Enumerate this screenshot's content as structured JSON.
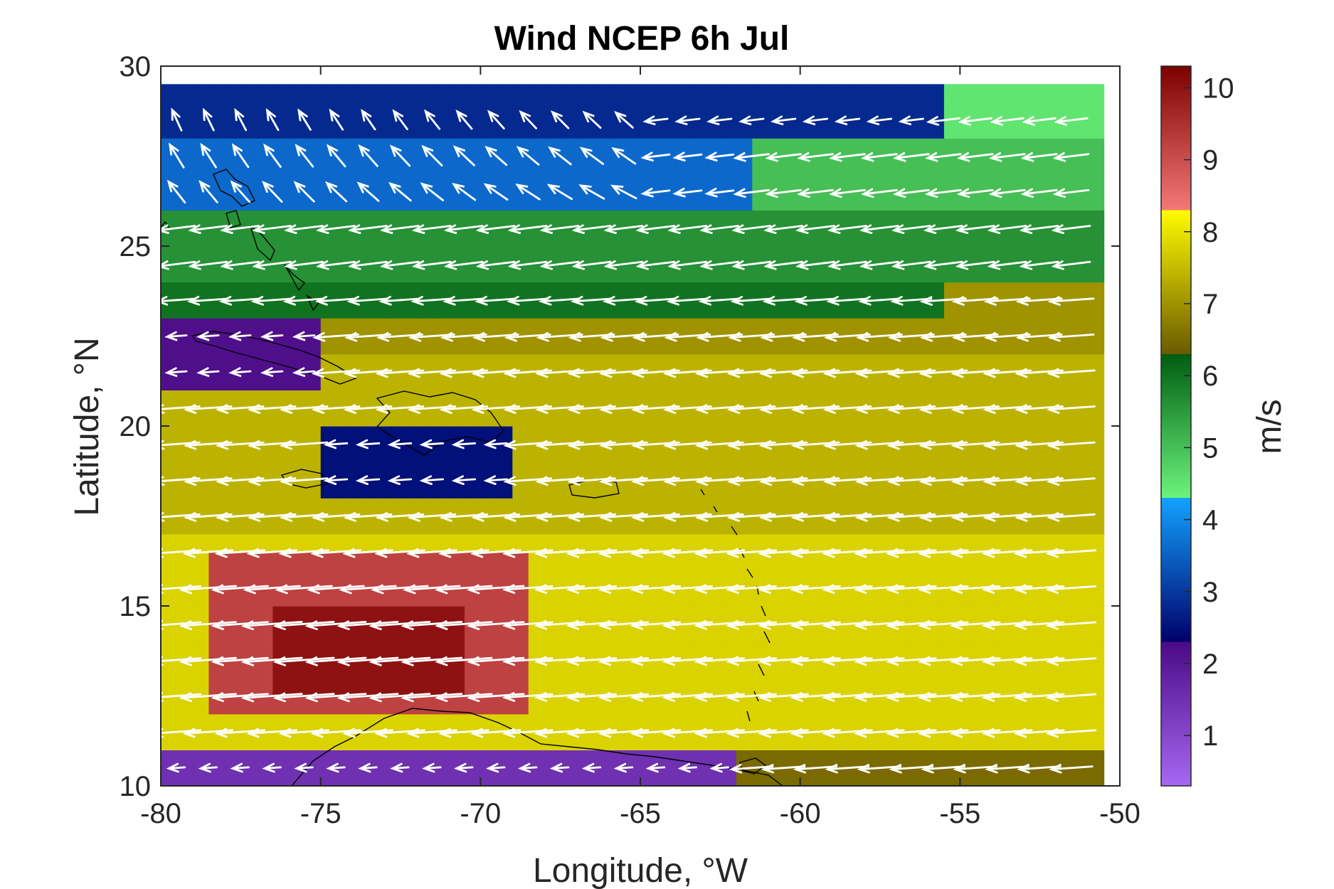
{
  "chart_data": {
    "type": "heatmap",
    "subtype": "vector-field-over-colored-grid",
    "title": "Wind NCEP 6h Jul",
    "xlabel": "Longitude, °W",
    "ylabel": "Latitude, °N",
    "xlim": [
      -80,
      -50
    ],
    "ylim": [
      10,
      30
    ],
    "xticks": [
      -80,
      -75,
      -70,
      -65,
      -60,
      -55,
      -50
    ],
    "yticks": [
      10,
      15,
      20,
      25,
      30
    ],
    "grid": false,
    "colorbar": {
      "label": "m/s",
      "range": [
        0.3,
        10.3
      ],
      "ticks": [
        1,
        2,
        3,
        4,
        5,
        6,
        7,
        8,
        9,
        10
      ],
      "position": "right",
      "segments": [
        {
          "from": 0.3,
          "to": 2.3,
          "color_start": "#a768f2",
          "color_end": "#4a0a86"
        },
        {
          "from": 2.3,
          "to": 4.3,
          "color_start": "#00006a",
          "color_end": "#12a2ff"
        },
        {
          "from": 4.3,
          "to": 6.3,
          "color_start": "#6cf47c",
          "color_end": "#005c10"
        },
        {
          "from": 6.3,
          "to": 8.3,
          "color_start": "#6b5a00",
          "color_end": "#fffc00"
        },
        {
          "from": 8.3,
          "to": 10.3,
          "color_start": "#f47878",
          "color_end": "#7c0000"
        }
      ]
    },
    "grid_spacing_deg": 1,
    "arrow_color": "#ffffff",
    "land_outline_color": "#000000",
    "speed_bands": [
      {
        "lat_min": 28,
        "lat_max": 29.5,
        "lon_min": -80,
        "lon_max": -55.5,
        "speed": 2.8
      },
      {
        "lat_min": 28,
        "lat_max": 29.5,
        "lon_min": -55.5,
        "lon_max": -50.5,
        "speed": 4.5
      },
      {
        "lat_min": 26,
        "lat_max": 28,
        "lon_min": -80,
        "lon_max": -61.5,
        "speed": 3.6
      },
      {
        "lat_min": 26,
        "lat_max": 28,
        "lon_min": -61.5,
        "lon_max": -50.5,
        "speed": 5.0
      },
      {
        "lat_min": 24,
        "lat_max": 26,
        "lon_min": -80,
        "lon_max": -50.5,
        "speed": 5.6
      },
      {
        "lat_min": 23,
        "lat_max": 24,
        "lon_min": -80,
        "lon_max": -55.5,
        "speed": 6.0
      },
      {
        "lat_min": 23,
        "lat_max": 24,
        "lon_min": -55.5,
        "lon_max": -50.5,
        "speed": 7.0
      },
      {
        "lat_min": 22,
        "lat_max": 23,
        "lon_min": -80,
        "lon_max": -50.5,
        "speed": 7.0
      },
      {
        "lat_min": 17,
        "lat_max": 22,
        "lon_min": -80,
        "lon_max": -50.5,
        "speed": 7.4
      },
      {
        "lat_min": 11,
        "lat_max": 17,
        "lon_min": -80,
        "lon_max": -50.5,
        "speed": 7.8
      },
      {
        "lat_min": 12,
        "lat_max": 16.5,
        "lon_min": -78.5,
        "lon_max": -68.5,
        "speed": 9.2
      },
      {
        "lat_min": 12.5,
        "lat_max": 15,
        "lon_min": -76.5,
        "lon_max": -70.5,
        "speed": 10.0
      },
      {
        "lat_min": 18,
        "lat_max": 20,
        "lon_min": -75,
        "lon_max": -69,
        "speed": 2.5
      },
      {
        "lat_min": 21,
        "lat_max": 23,
        "lon_min": -80,
        "lon_max": -75,
        "speed": 2.2
      },
      {
        "lat_min": 10,
        "lat_max": 11,
        "lon_min": -80,
        "lon_max": -62,
        "speed": 1.5
      },
      {
        "lat_min": 10,
        "lat_max": 11,
        "lon_min": -62,
        "lon_max": -50.5,
        "speed": 6.5
      }
    ],
    "wind_direction": "easterly (arrows point westward; northeasterly in the north-west corner)"
  }
}
